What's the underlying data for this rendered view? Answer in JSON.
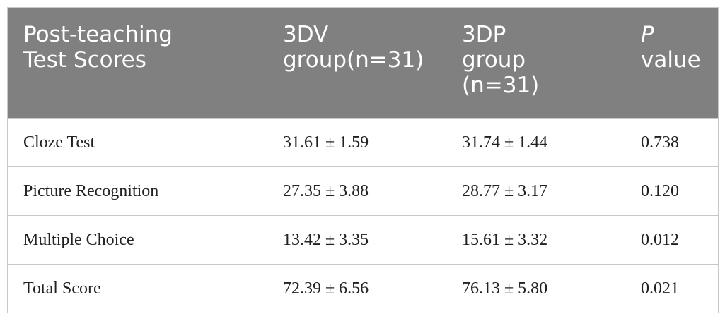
{
  "table": {
    "header": [
      [
        "Post-teaching",
        "Test Scores"
      ],
      [
        "3DV",
        "group(n=31)"
      ],
      [
        "3DP",
        "group",
        "(n=31)"
      ],
      [
        "P",
        "value"
      ]
    ],
    "rows": [
      [
        "Cloze Test",
        "31.61 ± 1.59",
        "31.74 ± 1.44",
        "0.738"
      ],
      [
        "Picture Recognition",
        "27.35 ± 3.88",
        "28.77 ± 3.17",
        "0.120"
      ],
      [
        "Multiple Choice",
        "13.42 ± 3.35",
        "15.61 ± 3.32",
        "0.012"
      ],
      [
        "Total Score",
        "72.39 ± 6.56",
        "76.13 ± 5.80",
        "0.021"
      ]
    ]
  }
}
